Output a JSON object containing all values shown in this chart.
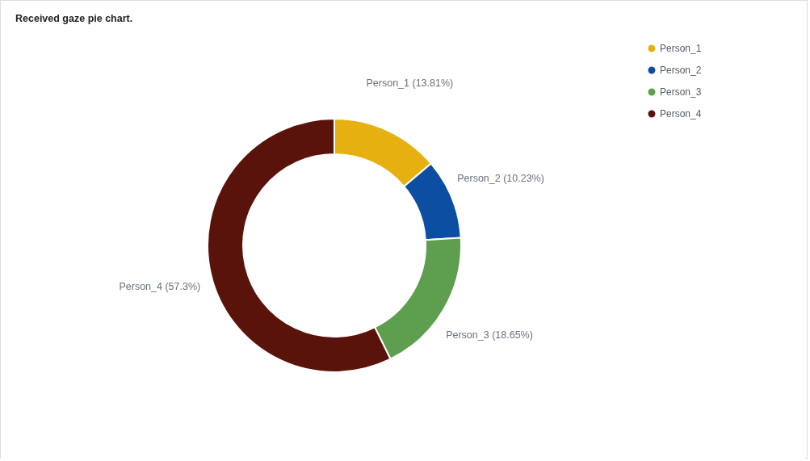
{
  "chart_data": {
    "type": "donut",
    "title": "Received gaze pie chart.",
    "categories": [
      "Person_1",
      "Person_2",
      "Person_3",
      "Person_4"
    ],
    "values": [
      13.81,
      10.23,
      18.65,
      57.3
    ],
    "colors": [
      "#e6b010",
      "#0b4ea2",
      "#5e9e4f",
      "#5a130a"
    ],
    "value_labels": [
      "Person_1 (13.81%)",
      "Person_2 (10.23%)",
      "Person_3 (18.65%)",
      "Person_4 (57.3%)"
    ],
    "legend": "top right"
  }
}
